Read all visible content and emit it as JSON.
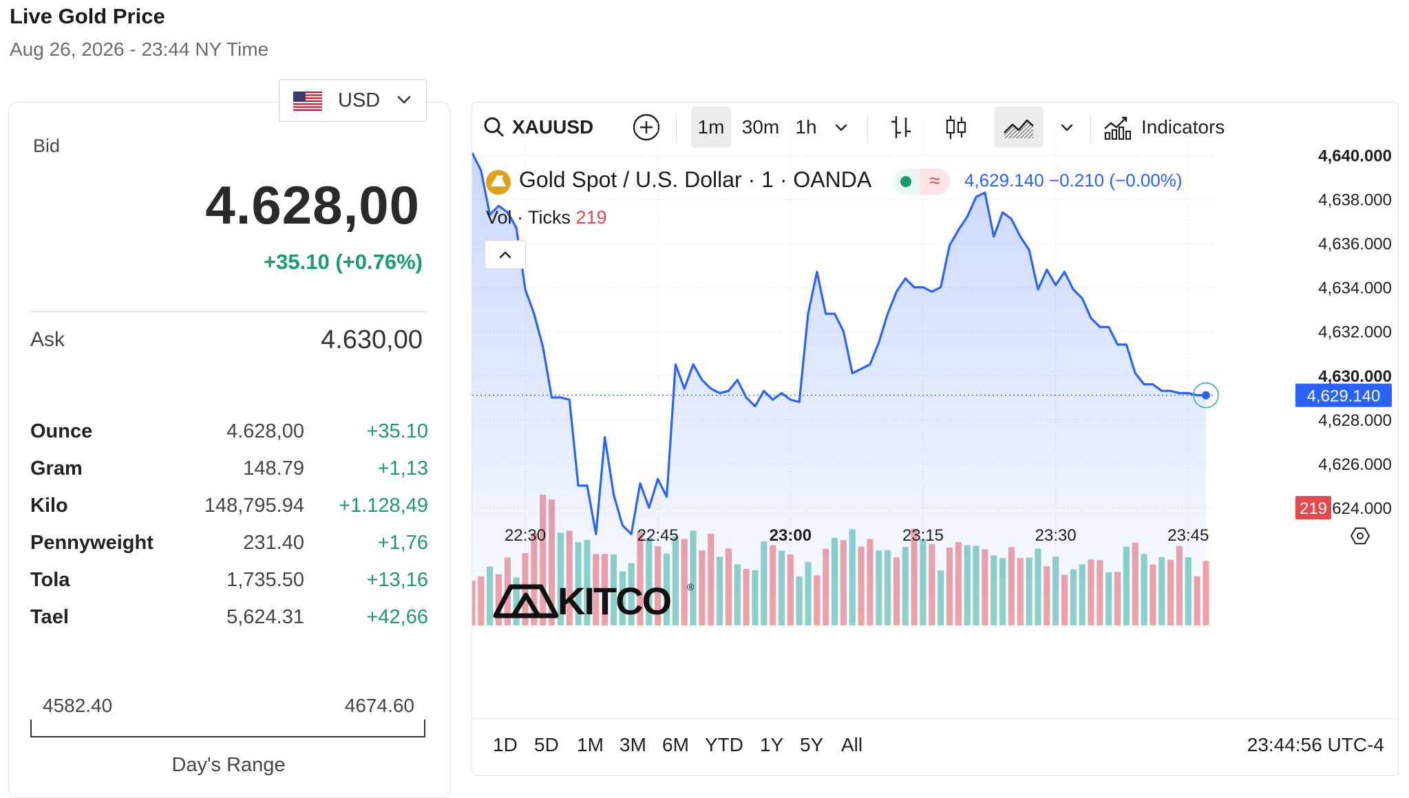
{
  "header": {
    "title": "Live Gold Price",
    "subtitle": "Aug 26, 2026 - 23:44 NY Time"
  },
  "currency": {
    "selected": "USD"
  },
  "bid": {
    "label": "Bid",
    "value": "4.628,00",
    "change": "+35.10 (+0.76%)"
  },
  "ask": {
    "label": "Ask",
    "value": "4.630,00"
  },
  "units": [
    {
      "name": "Ounce",
      "price": "4.628,00",
      "change": "+35.10"
    },
    {
      "name": "Gram",
      "price": "148.79",
      "change": "+1,13"
    },
    {
      "name": "Kilo",
      "price": "148,795.94",
      "change": "+1.128,49"
    },
    {
      "name": "Pennyweight",
      "price": "231.40",
      "change": "+1,76"
    },
    {
      "name": "Tola",
      "price": "1,735.50",
      "change": "+13,16"
    },
    {
      "name": "Tael",
      "price": "5,624.31",
      "change": "+42,66"
    }
  ],
  "day_range": {
    "low": "4582.40",
    "high": "4674.60",
    "label": "Day's Range",
    "current_fraction": 0.496
  },
  "toolbar": {
    "symbol": "XAUUSD",
    "intervals": [
      "1m",
      "30m",
      "1h"
    ],
    "active_interval": "1m",
    "indicators_label": "Indicators",
    "icons": [
      "search-icon",
      "add-symbol-icon",
      "chevron-down-icon",
      "bar-chart-icon",
      "candlestick-icon",
      "area-chart-icon",
      "indicators-icon"
    ]
  },
  "legend": {
    "title": "Gold Spot / U.S. Dollar · 1 · OANDA",
    "quote": "4,629.140 −0.210 (−0.00%)",
    "vol_label": "Vol · Ticks",
    "vol_value": "219"
  },
  "watermark": "KITCO",
  "bottom": {
    "ranges": [
      "1D",
      "5D",
      "1M",
      "3M",
      "6M",
      "YTD",
      "1Y",
      "5Y",
      "All"
    ],
    "clock": "23:44:56 UTC-4"
  },
  "colors": {
    "line": "#2962ff",
    "up": "#1a9a6e",
    "vol_up": "#8fd3c8",
    "vol_down": "#f2a3a6",
    "price_tag": "#2962ff",
    "vol_tag": "#e5484d"
  },
  "chart_data": {
    "type": "line",
    "title": "",
    "xlabel": "",
    "ylabel": "",
    "x_ticks": [
      "22:30",
      "22:45",
      "23:00",
      "23:15",
      "23:30",
      "23:45"
    ],
    "y_ticks": [
      "4,640.000",
      "4,638.000",
      "4,636.000",
      "4,634.000",
      "4,632.000",
      "4,630.000",
      "4,628.000",
      "4,626.000",
      "4,624.000"
    ],
    "ylim": [
      4623.5,
      4640.2
    ],
    "last_price_label": "4,629.140",
    "last_volume_label": "219",
    "series": [
      {
        "x_minutes": [
          0,
          1,
          2,
          3,
          4,
          5,
          6,
          7,
          8,
          9,
          10,
          11,
          12,
          13,
          14,
          15,
          16,
          17,
          18,
          19,
          20,
          21,
          22,
          23,
          24,
          25,
          26,
          27,
          28,
          29,
          30,
          31,
          32,
          33,
          34,
          35,
          36,
          37,
          38,
          39,
          40,
          41,
          42,
          43,
          44,
          45,
          46,
          47,
          48,
          49,
          50,
          51,
          52,
          53,
          54,
          55,
          56,
          57,
          58,
          59,
          60,
          61,
          62,
          63,
          64,
          65,
          66,
          67,
          68,
          69,
          70,
          71,
          72,
          73,
          74,
          75,
          76,
          77,
          78,
          79,
          80,
          81,
          82,
          83
        ],
        "price": [
          4640.1,
          4639.3,
          4637.3,
          4637.7,
          4637.4,
          4636.7,
          4633.9,
          4632.8,
          4631.3,
          4629.0,
          4629.0,
          4628.9,
          4625.0,
          4625.0,
          4622.8,
          4627.2,
          4624.6,
          4623.2,
          4622.8,
          4625.1,
          4624.0,
          4625.3,
          4624.5,
          4630.5,
          4629.4,
          4630.5,
          4629.8,
          4629.4,
          4629.2,
          4629.3,
          4629.8,
          4629.0,
          4628.6,
          4629.3,
          4628.9,
          4629.2,
          4628.9,
          4628.8,
          4632.8,
          4634.7,
          4632.8,
          4632.8,
          4632.0,
          4630.1,
          4630.3,
          4630.5,
          4631.5,
          4632.8,
          4633.8,
          4634.4,
          4634.0,
          4634.0,
          4633.8,
          4634.0,
          4635.9,
          4636.6,
          4637.2,
          4638.1,
          4638.3,
          4636.3,
          4637.4,
          4637.1,
          4636.3,
          4635.7,
          4633.9,
          4634.8,
          4634.1,
          4634.7,
          4633.9,
          4633.5,
          4632.6,
          4632.2,
          4632.2,
          4631.4,
          4631.4,
          4630.1,
          4629.6,
          4629.6,
          4629.3,
          4629.3,
          4629.2,
          4629.2,
          4629.1,
          4629.1
        ],
        "volume_ticks": [
          152,
          167,
          200,
          174,
          231,
          163,
          246,
          314,
          445,
          428,
          315,
          322,
          283,
          291,
          243,
          243,
          242,
          184,
          212,
          319,
          298,
          269,
          244,
          302,
          294,
          322,
          255,
          312,
          233,
          262,
          208,
          192,
          188,
          286,
          273,
          254,
          241,
          167,
          216,
          170,
          260,
          298,
          290,
          327,
          268,
          294,
          255,
          256,
          231,
          267,
          329,
          294,
          277,
          187,
          265,
          283,
          273,
          271,
          259,
          238,
          229,
          266,
          229,
          231,
          261,
          201,
          234,
          172,
          191,
          208,
          224,
          222,
          181,
          182,
          268,
          281,
          243,
          207,
          232,
          223,
          270,
          232,
          167,
          219
        ],
        "volume_up": [
          false,
          false,
          true,
          false,
          false,
          true,
          false,
          false,
          false,
          false,
          true,
          false,
          true,
          true,
          false,
          false,
          true,
          true,
          true,
          false,
          true,
          false,
          true,
          true,
          false,
          true,
          false,
          false,
          true,
          false,
          true,
          false,
          true,
          true,
          false,
          true,
          false,
          true,
          true,
          false,
          false,
          true,
          false,
          true,
          false,
          false,
          true,
          true,
          false,
          true,
          false,
          true,
          false,
          true,
          false,
          false,
          true,
          true,
          false,
          true,
          true,
          false,
          false,
          true,
          true,
          false,
          true,
          false,
          true,
          true,
          false,
          false,
          true,
          false,
          true,
          false,
          true,
          false,
          true,
          false,
          false,
          true,
          false,
          false
        ]
      }
    ]
  }
}
